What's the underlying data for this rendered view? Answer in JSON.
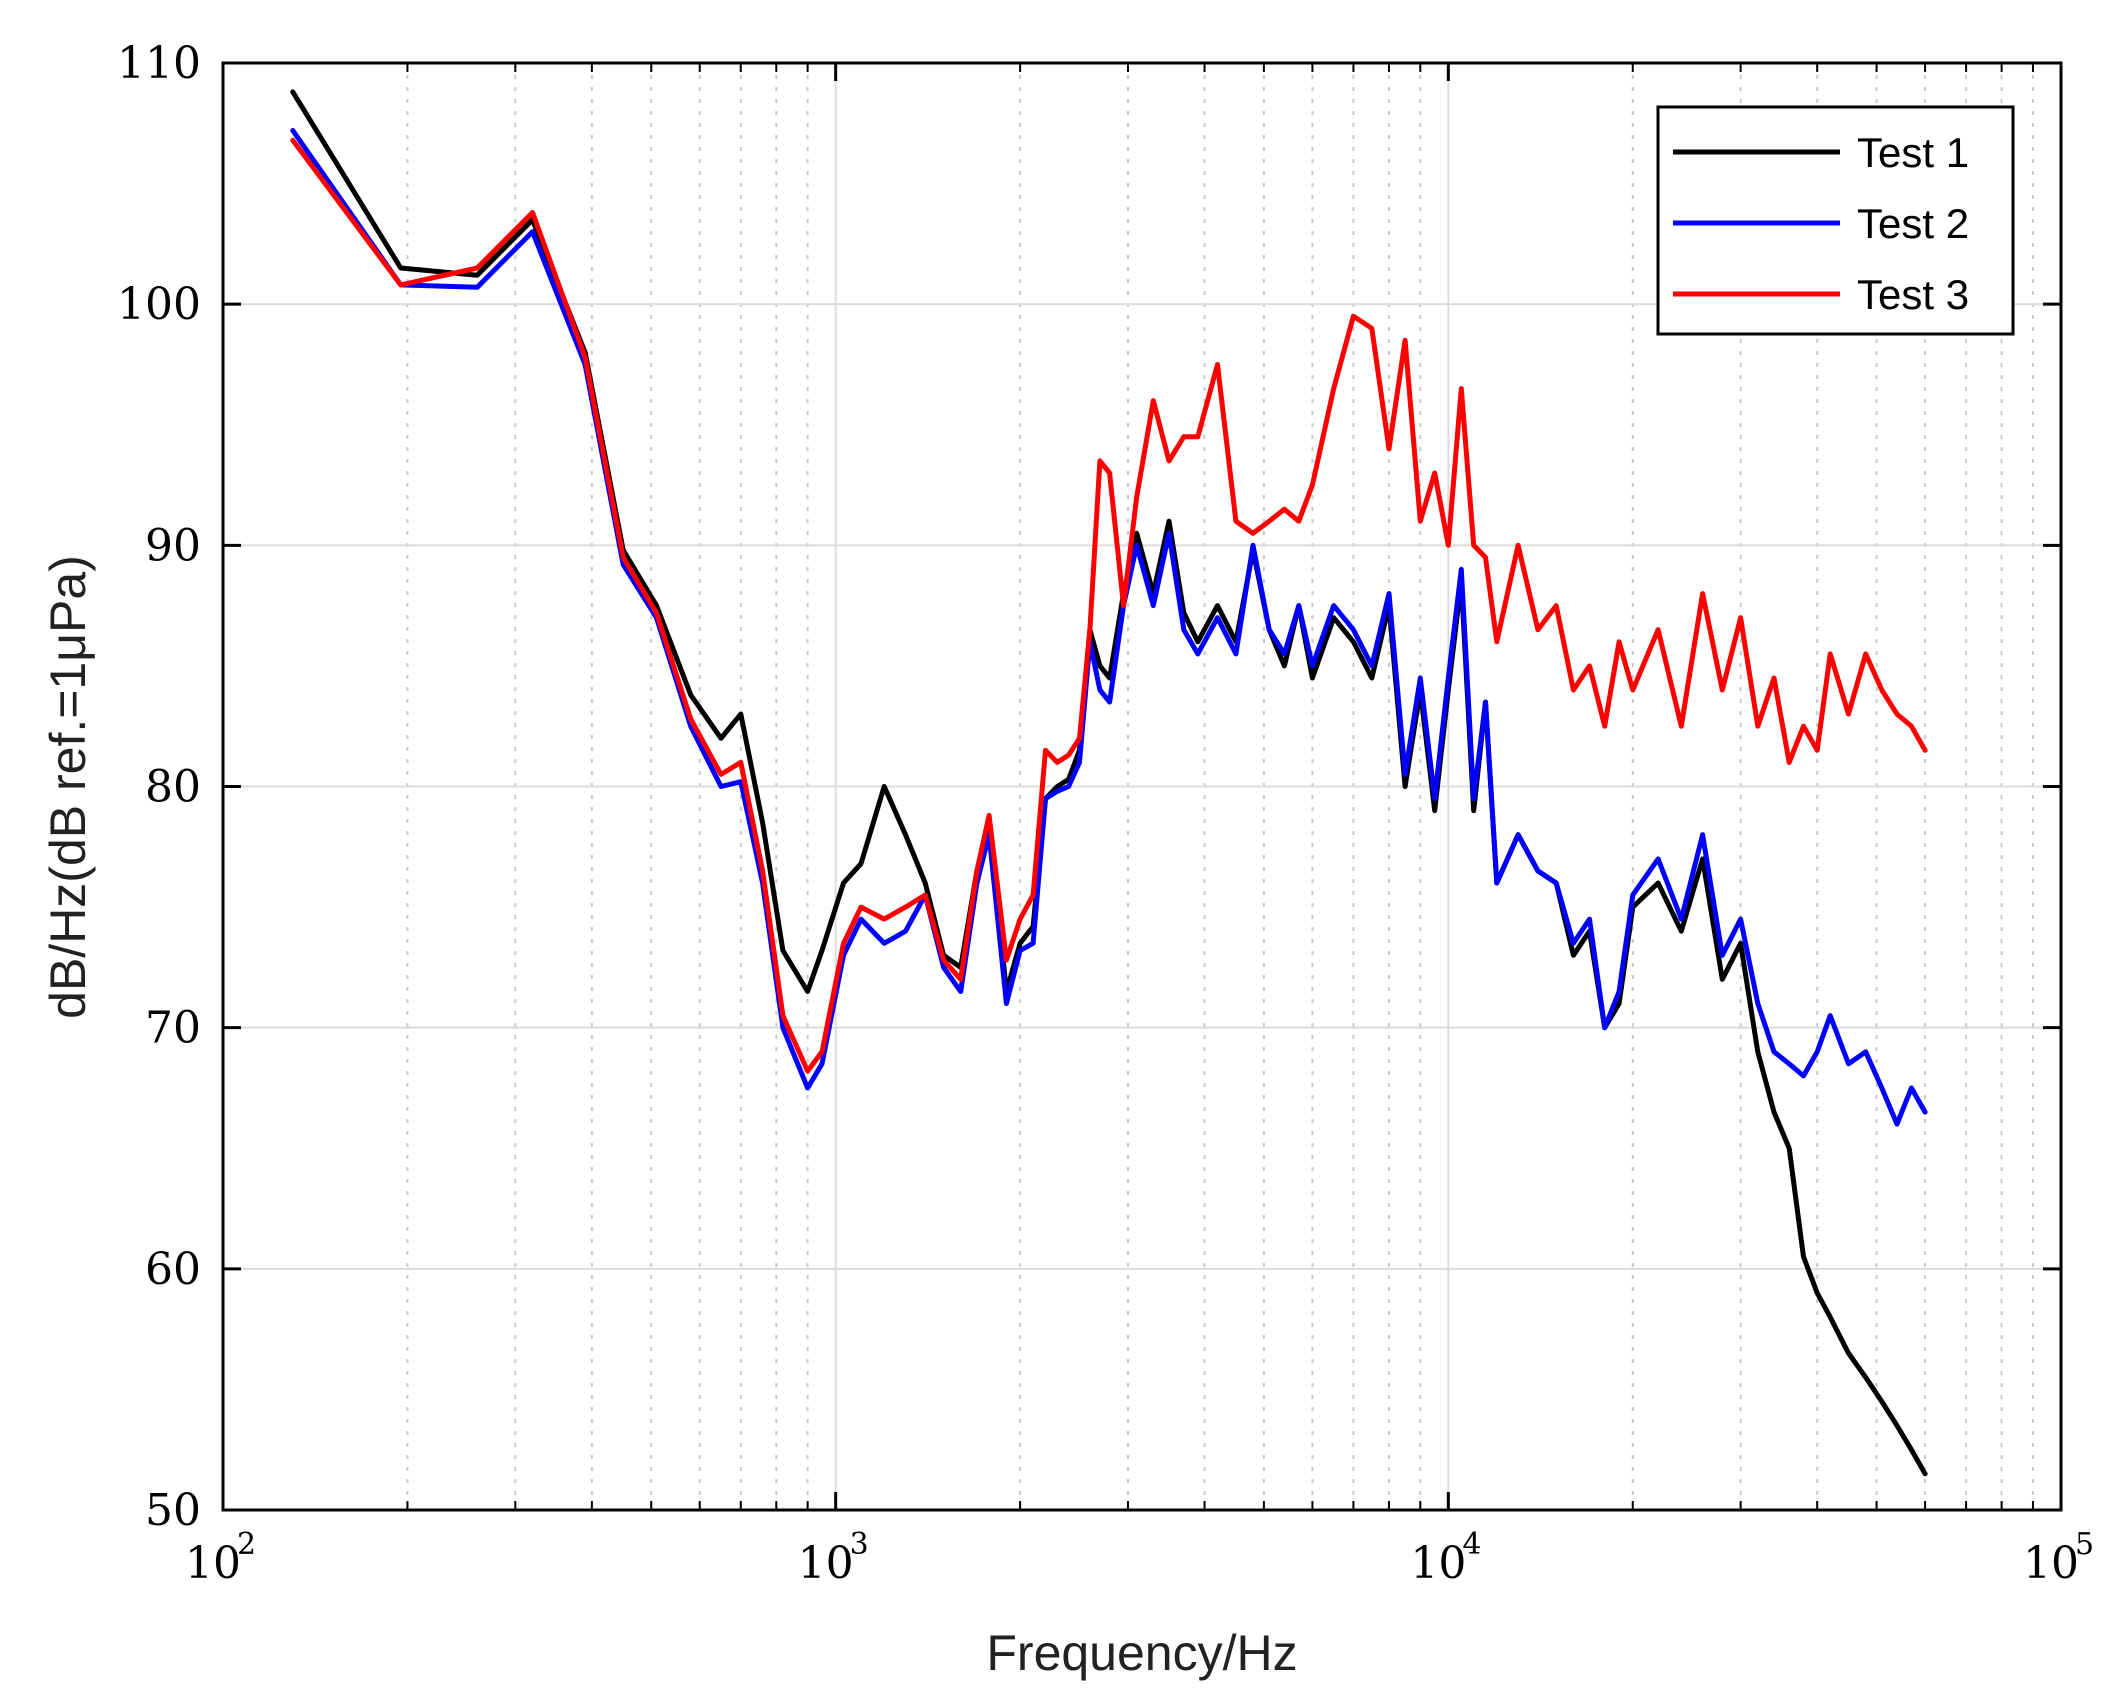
{
  "chart_data": {
    "type": "line",
    "title": "",
    "xlabel": "Frequency/Hz",
    "ylabel": "dB/Hz(dB ref.=1μPa)",
    "xscale": "log",
    "xlim": [
      100,
      100000
    ],
    "ylim": [
      50,
      110
    ],
    "xticks": [
      {
        "base": "10",
        "exp": "2"
      },
      {
        "base": "10",
        "exp": "3"
      },
      {
        "base": "10",
        "exp": "4"
      },
      {
        "base": "10",
        "exp": "5"
      }
    ],
    "yticks": [
      "50",
      "60",
      "70",
      "80",
      "90",
      "100",
      "110"
    ],
    "grid": true,
    "legend_position": "top-right",
    "series": [
      {
        "name": "Test 1",
        "color": "#000000",
        "x": [
          130,
          195,
          260,
          320,
          390,
          450,
          510,
          580,
          650,
          700,
          760,
          820,
          900,
          950,
          1030,
          1100,
          1200,
          1300,
          1400,
          1500,
          1600,
          1700,
          1780,
          1900,
          2000,
          2100,
          2200,
          2300,
          2400,
          2500,
          2600,
          2700,
          2800,
          2950,
          3100,
          3300,
          3500,
          3700,
          3900,
          4200,
          4500,
          4800,
          5100,
          5400,
          5700,
          6000,
          6500,
          7000,
          7500,
          8000,
          8500,
          9000,
          9500,
          10000,
          10500,
          11000,
          11500,
          12000,
          13000,
          14000,
          15000,
          16000,
          17000,
          18000,
          19000,
          20000,
          22000,
          24000,
          26000,
          28000,
          30000,
          32000,
          34000,
          36000,
          38000,
          40000,
          42000,
          45000,
          48000,
          51000,
          54000,
          57000,
          60000
        ],
        "y": [
          108.8,
          101.5,
          101.2,
          103.5,
          98.0,
          89.8,
          87.5,
          83.8,
          82.0,
          83.0,
          78.5,
          73.2,
          71.5,
          73.2,
          76.0,
          76.8,
          80.0,
          78.0,
          76.0,
          73.0,
          72.5,
          76.5,
          78.5,
          71.5,
          73.5,
          74.2,
          79.5,
          80.0,
          80.3,
          81.5,
          86.5,
          85.0,
          84.5,
          88.0,
          90.5,
          88.0,
          91.0,
          87.2,
          86.0,
          87.5,
          86.0,
          89.8,
          86.5,
          85.0,
          87.5,
          84.5,
          87.0,
          86.0,
          84.5,
          87.5,
          80.0,
          84.0,
          79.0,
          84.0,
          88.5,
          79.0,
          83.5,
          76.0,
          78.0,
          76.5,
          76.0,
          73.0,
          74.0,
          70.0,
          71.0,
          75.0,
          76.0,
          74.0,
          77.0,
          72.0,
          73.5,
          69.0,
          66.5,
          65.0,
          60.5,
          59.0,
          58.0,
          56.5,
          55.5,
          54.5,
          53.5,
          52.5,
          51.5
        ]
      },
      {
        "name": "Test 2",
        "color": "#0000ff",
        "x": [
          130,
          195,
          260,
          320,
          390,
          450,
          510,
          580,
          650,
          700,
          760,
          820,
          900,
          950,
          1030,
          1100,
          1200,
          1300,
          1400,
          1500,
          1600,
          1700,
          1780,
          1900,
          2000,
          2100,
          2200,
          2300,
          2400,
          2500,
          2600,
          2700,
          2800,
          2950,
          3100,
          3300,
          3500,
          3700,
          3900,
          4200,
          4500,
          4800,
          5100,
          5400,
          5700,
          6000,
          6500,
          7000,
          7500,
          8000,
          8500,
          9000,
          9500,
          10000,
          10500,
          11000,
          11500,
          12000,
          13000,
          14000,
          15000,
          16000,
          17000,
          18000,
          19000,
          20000,
          22000,
          24000,
          26000,
          28000,
          30000,
          32000,
          34000,
          36000,
          38000,
          40000,
          42000,
          45000,
          48000,
          51000,
          54000,
          57000,
          60000
        ],
        "y": [
          107.2,
          100.8,
          100.7,
          103.0,
          97.5,
          89.2,
          87.0,
          82.5,
          80.0,
          80.2,
          76.0,
          70.0,
          67.5,
          68.5,
          73.0,
          74.5,
          73.5,
          74.0,
          75.5,
          72.5,
          71.5,
          76.0,
          78.0,
          71.0,
          73.2,
          73.5,
          79.5,
          79.8,
          80.0,
          81.0,
          86.0,
          84.0,
          83.5,
          87.5,
          90.0,
          87.5,
          90.5,
          86.5,
          85.5,
          87.0,
          85.5,
          90.0,
          86.5,
          85.5,
          87.5,
          85.0,
          87.5,
          86.5,
          85.0,
          88.0,
          80.5,
          84.5,
          79.5,
          84.5,
          89.0,
          79.5,
          83.5,
          76.0,
          78.0,
          76.5,
          76.0,
          73.5,
          74.5,
          70.0,
          71.5,
          75.5,
          77.0,
          74.5,
          78.0,
          73.0,
          74.5,
          71.0,
          69.0,
          68.5,
          68.0,
          69.0,
          70.5,
          68.5,
          69.0,
          67.5,
          66.0,
          67.5,
          66.5
        ]
      },
      {
        "name": "Test 3",
        "color": "#ff0000",
        "x": [
          130,
          195,
          260,
          320,
          390,
          450,
          510,
          580,
          650,
          700,
          760,
          820,
          900,
          950,
          1030,
          1100,
          1200,
          1300,
          1400,
          1500,
          1600,
          1700,
          1780,
          1900,
          2000,
          2100,
          2200,
          2300,
          2400,
          2500,
          2600,
          2700,
          2800,
          2950,
          3100,
          3300,
          3500,
          3700,
          3900,
          4200,
          4500,
          4800,
          5100,
          5400,
          5700,
          6000,
          6500,
          7000,
          7500,
          8000,
          8500,
          9000,
          9500,
          10000,
          10500,
          11000,
          11500,
          12000,
          13000,
          14000,
          15000,
          16000,
          17000,
          18000,
          19000,
          20000,
          22000,
          24000,
          26000,
          28000,
          30000,
          32000,
          34000,
          36000,
          38000,
          40000,
          42000,
          45000,
          48000,
          51000,
          54000,
          57000,
          60000
        ],
        "y": [
          106.8,
          100.8,
          101.5,
          103.8,
          97.8,
          89.5,
          87.2,
          82.8,
          80.5,
          81.0,
          76.5,
          70.5,
          68.2,
          69.0,
          73.5,
          75.0,
          74.5,
          75.0,
          75.5,
          72.8,
          72.0,
          76.5,
          78.8,
          72.8,
          74.5,
          75.5,
          81.5,
          81.0,
          81.3,
          82.0,
          86.5,
          93.5,
          93.0,
          87.5,
          92.0,
          96.0,
          93.5,
          94.5,
          94.5,
          97.5,
          91.0,
          90.5,
          91.0,
          91.5,
          91.0,
          92.5,
          96.5,
          99.5,
          99.0,
          94.0,
          98.5,
          91.0,
          93.0,
          90.0,
          96.5,
          90.0,
          89.5,
          86.0,
          90.0,
          86.5,
          87.5,
          84.0,
          85.0,
          82.5,
          86.0,
          84.0,
          86.5,
          82.5,
          88.0,
          84.0,
          87.0,
          82.5,
          84.5,
          81.0,
          82.5,
          81.5,
          85.5,
          83.0,
          85.5,
          84.0,
          83.0,
          82.5,
          81.5
        ]
      }
    ]
  }
}
